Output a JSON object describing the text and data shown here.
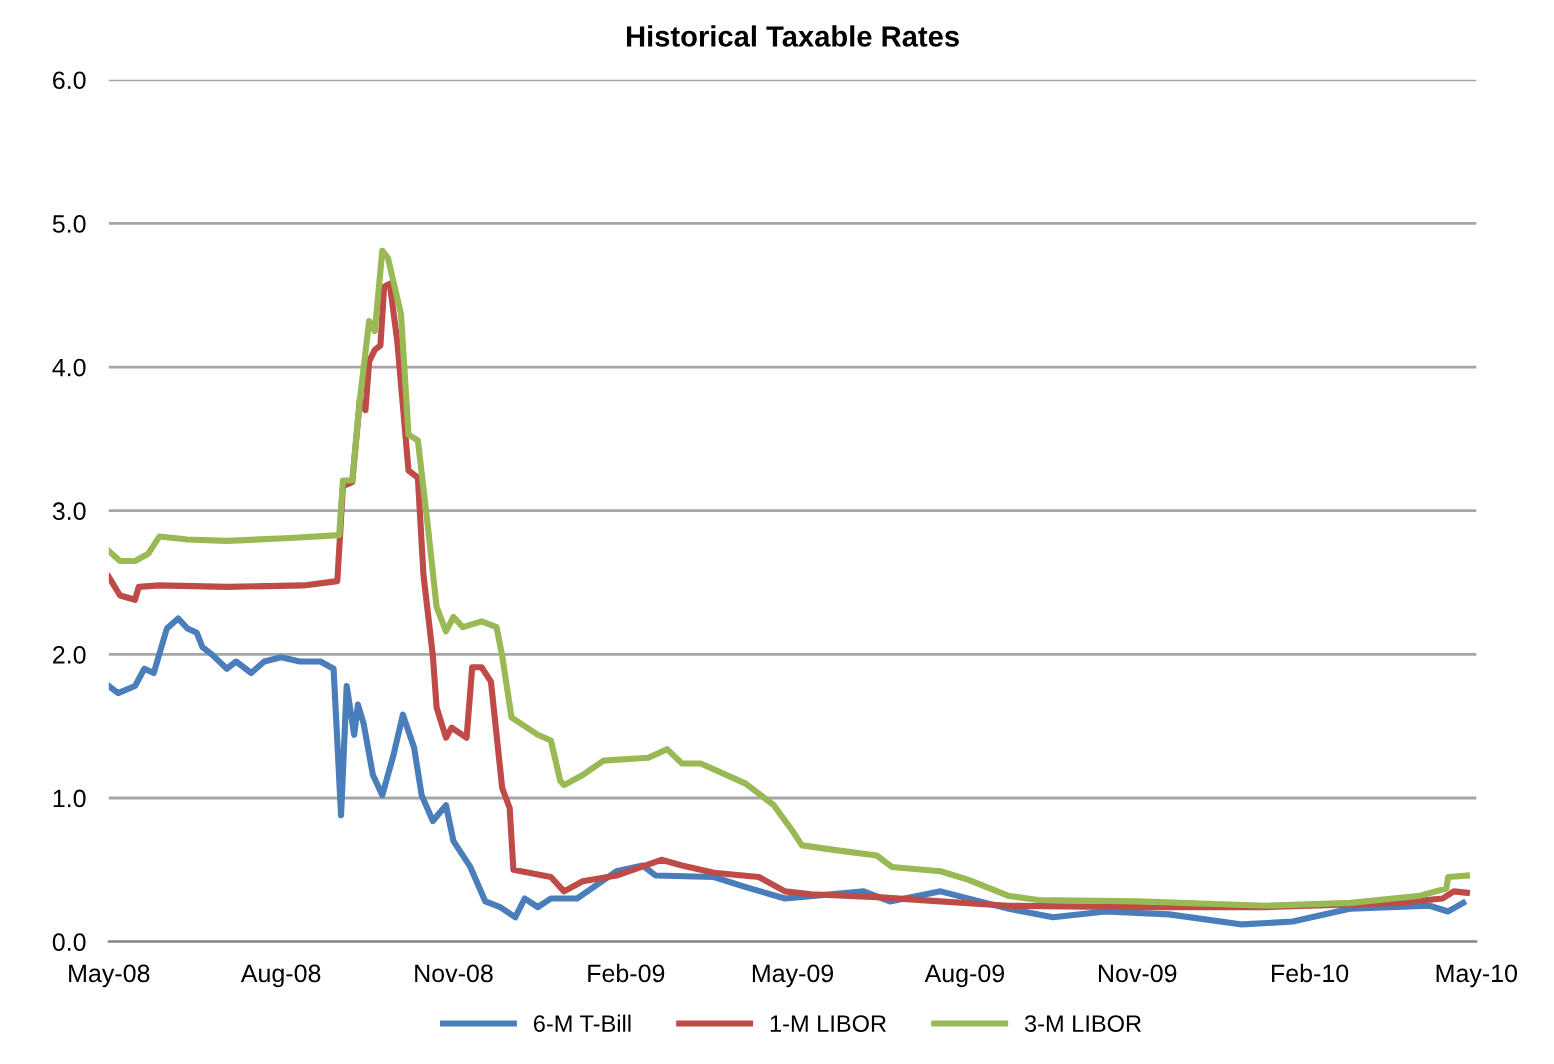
{
  "chart_data": {
    "type": "line",
    "title": "Historical Taxable Rates",
    "xlim": [
      "2008-05-01",
      "2010-05-01"
    ],
    "xticks": [
      {
        "value": "2008-05-01",
        "label": "May-08"
      },
      {
        "value": "2008-08-01",
        "label": "Aug-08"
      },
      {
        "value": "2008-11-01",
        "label": "Nov-08"
      },
      {
        "value": "2009-02-01",
        "label": "Feb-09"
      },
      {
        "value": "2009-05-01",
        "label": "May-09"
      },
      {
        "value": "2009-08-01",
        "label": "Aug-09"
      },
      {
        "value": "2009-11-01",
        "label": "Nov-09"
      },
      {
        "value": "2010-02-01",
        "label": "Feb-10"
      },
      {
        "value": "2010-05-01",
        "label": "May-10"
      }
    ],
    "ylim": [
      0,
      6
    ],
    "yticks": [
      {
        "value": 0,
        "label": "0.0"
      },
      {
        "value": 1,
        "label": "1.0"
      },
      {
        "value": 2,
        "label": "2.0"
      },
      {
        "value": 3,
        "label": "3.0"
      },
      {
        "value": 4,
        "label": "4.0"
      },
      {
        "value": 5,
        "label": "5.0"
      },
      {
        "value": 6,
        "label": "6.0"
      }
    ],
    "grid": "y",
    "legend": "bottom",
    "marker": "none",
    "line_style": "solid",
    "series": [
      {
        "name": "6-M T-Bill",
        "color": "#4a7ebb",
        "x": [
          "2008-05-01",
          "2008-05-06",
          "2008-05-15",
          "2008-05-20",
          "2008-05-25",
          "2008-06-01",
          "2008-06-07",
          "2008-06-12",
          "2008-06-17",
          "2008-06-20",
          "2008-06-25",
          "2008-07-03",
          "2008-07-08",
          "2008-07-16",
          "2008-07-23",
          "2008-08-01",
          "2008-08-11",
          "2008-08-22",
          "2008-08-29",
          "2008-09-02",
          "2008-09-05",
          "2008-09-09",
          "2008-09-11",
          "2008-09-14",
          "2008-09-19",
          "2008-09-24",
          "2008-09-30",
          "2008-10-05",
          "2008-10-11",
          "2008-10-15",
          "2008-10-21",
          "2008-10-28",
          "2008-11-01",
          "2008-11-10",
          "2008-11-18",
          "2008-11-26",
          "2008-12-04",
          "2008-12-09",
          "2008-12-16",
          "2008-12-23",
          "2009-01-06",
          "2009-01-27",
          "2009-02-10",
          "2009-02-17",
          "2009-03-20",
          "2009-04-06",
          "2009-04-27",
          "2009-06-08",
          "2009-06-22",
          "2009-07-19",
          "2009-08-24",
          "2009-09-17",
          "2009-10-15",
          "2009-11-18",
          "2009-12-27",
          "2010-01-23",
          "2010-02-23",
          "2010-04-06",
          "2010-04-16",
          "2010-04-24"
        ],
        "values": [
          1.78,
          1.73,
          1.78,
          1.9,
          1.87,
          2.18,
          2.25,
          2.18,
          2.15,
          2.05,
          2.0,
          1.9,
          1.95,
          1.87,
          1.95,
          1.98,
          1.95,
          1.95,
          1.9,
          0.88,
          1.78,
          1.44,
          1.65,
          1.52,
          1.16,
          1.02,
          1.3,
          1.58,
          1.35,
          1.02,
          0.84,
          0.95,
          0.7,
          0.52,
          0.28,
          0.24,
          0.17,
          0.3,
          0.24,
          0.3,
          0.3,
          0.49,
          0.53,
          0.46,
          0.45,
          0.38,
          0.3,
          0.35,
          0.28,
          0.35,
          0.23,
          0.17,
          0.21,
          0.19,
          0.12,
          0.14,
          0.23,
          0.25,
          0.21,
          0.27
        ]
      },
      {
        "name": "1-M LIBOR",
        "color": "#be4b48",
        "x": [
          "2008-05-01",
          "2008-05-07",
          "2008-05-15",
          "2008-05-17",
          "2008-05-28",
          "2008-07-03",
          "2008-08-13",
          "2008-08-31",
          "2008-09-03",
          "2008-09-08",
          "2008-09-12",
          "2008-09-15",
          "2008-09-17",
          "2008-09-20",
          "2008-09-23",
          "2008-09-25",
          "2008-09-28",
          "2008-10-02",
          "2008-10-08",
          "2008-10-13",
          "2008-10-16",
          "2008-10-21",
          "2008-10-23",
          "2008-10-28",
          "2008-10-31",
          "2008-11-08",
          "2008-11-11",
          "2008-11-16",
          "2008-11-21",
          "2008-11-27",
          "2008-12-01",
          "2008-12-03",
          "2008-12-23",
          "2008-12-30",
          "2009-01-09",
          "2009-01-27",
          "2009-02-20",
          "2009-03-03",
          "2009-03-20",
          "2009-04-13",
          "2009-04-27",
          "2009-05-11",
          "2009-06-15",
          "2009-07-19",
          "2009-08-24",
          "2009-11-01",
          "2010-01-09",
          "2010-03-20",
          "2010-04-13",
          "2010-04-19",
          "2010-04-26"
        ],
        "values": [
          2.54,
          2.41,
          2.38,
          2.47,
          2.48,
          2.47,
          2.48,
          2.51,
          3.17,
          3.2,
          3.77,
          3.7,
          4.04,
          4.12,
          4.15,
          4.56,
          4.58,
          4.18,
          3.28,
          3.23,
          2.55,
          1.99,
          1.63,
          1.42,
          1.49,
          1.42,
          1.91,
          1.91,
          1.81,
          1.07,
          0.93,
          0.5,
          0.45,
          0.35,
          0.42,
          0.46,
          0.57,
          0.53,
          0.48,
          0.45,
          0.35,
          0.33,
          0.31,
          0.28,
          0.25,
          0.24,
          0.24,
          0.27,
          0.3,
          0.35,
          0.34
        ]
      },
      {
        "name": "3-M LIBOR",
        "color": "#98b954",
        "x": [
          "2008-05-01",
          "2008-05-07",
          "2008-05-15",
          "2008-05-22",
          "2008-05-28",
          "2008-06-12",
          "2008-07-03",
          "2008-08-06",
          "2008-09-01",
          "2008-09-03",
          "2008-09-08",
          "2008-09-12",
          "2008-09-17",
          "2008-09-20",
          "2008-09-24",
          "2008-09-27",
          "2008-10-04",
          "2008-10-08",
          "2008-10-13",
          "2008-10-18",
          "2008-10-23",
          "2008-10-28",
          "2008-11-01",
          "2008-11-06",
          "2008-11-16",
          "2008-11-24",
          "2008-11-27",
          "2008-12-02",
          "2008-12-16",
          "2008-12-23",
          "2008-12-28",
          "2008-12-30",
          "2009-01-09",
          "2009-01-20",
          "2009-02-13",
          "2009-02-23",
          "2009-03-03",
          "2009-03-13",
          "2009-04-06",
          "2009-04-21",
          "2009-05-01",
          "2009-05-06",
          "2009-05-28",
          "2009-06-15",
          "2009-06-23",
          "2009-07-19",
          "2009-08-03",
          "2009-08-24",
          "2009-09-09",
          "2009-11-01",
          "2010-01-09",
          "2010-02-23",
          "2010-04-01",
          "2010-04-15",
          "2010-04-16",
          "2010-04-26"
        ],
        "values": [
          2.72,
          2.65,
          2.65,
          2.7,
          2.82,
          2.8,
          2.79,
          2.81,
          2.83,
          3.21,
          3.21,
          3.77,
          4.32,
          4.25,
          4.81,
          4.76,
          4.37,
          3.53,
          3.49,
          2.93,
          2.33,
          2.16,
          2.26,
          2.19,
          2.23,
          2.19,
          1.99,
          1.56,
          1.44,
          1.4,
          1.12,
          1.09,
          1.16,
          1.26,
          1.28,
          1.34,
          1.24,
          1.24,
          1.1,
          0.95,
          0.77,
          0.67,
          0.63,
          0.6,
          0.52,
          0.49,
          0.43,
          0.32,
          0.29,
          0.28,
          0.25,
          0.27,
          0.32,
          0.37,
          0.45,
          0.46
        ]
      }
    ]
  }
}
